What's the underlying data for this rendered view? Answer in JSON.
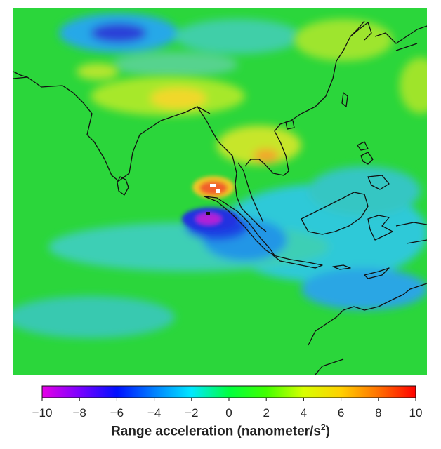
{
  "colorbar": {
    "title_text": "Range acceleration (nanometer/s",
    "title_sup": "2",
    "title_close": ")",
    "ticks": [
      "−10",
      "−8",
      "−6",
      "−4",
      "−2",
      "0",
      "2",
      "4",
      "6",
      "8",
      "10"
    ],
    "range": [
      -10,
      10
    ],
    "gradient_colors": [
      "#e600e6",
      "#7a00ff",
      "#0010ff",
      "#0080ff",
      "#00e8ff",
      "#00ff40",
      "#40ff00",
      "#d8ff00",
      "#ffd000",
      "#ff7000",
      "#ff0000"
    ]
  },
  "map": {
    "background_color": "#2ad83a",
    "coastline_color": "#111111",
    "anomalies": [
      {
        "name": "positive-anomaly-north",
        "value": 10
      },
      {
        "name": "negative-anomaly-south",
        "value": -10
      },
      {
        "name": "himalaya-high",
        "value": 5
      },
      {
        "name": "tibet-low",
        "value": -6
      }
    ]
  }
}
